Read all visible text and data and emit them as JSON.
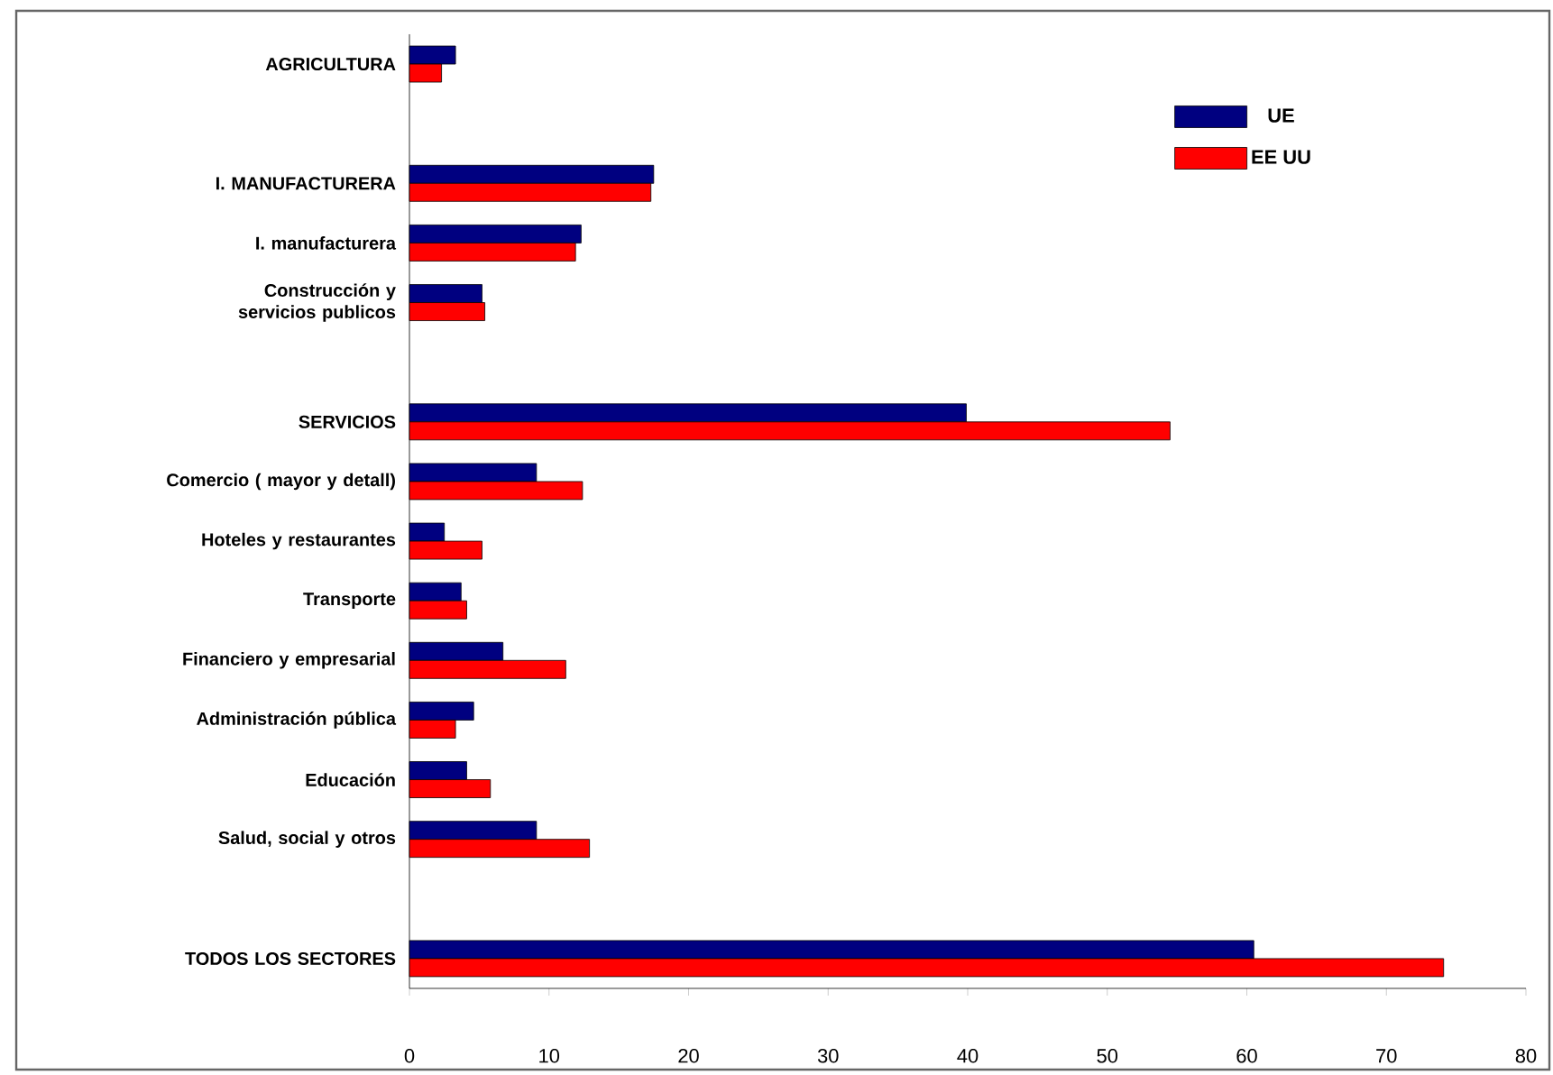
{
  "chart_data": {
    "type": "bar",
    "orientation": "horizontal",
    "categories": [
      "AGRICULTURA",
      null,
      "I. MANUFACTURERA",
      "I. manufacturera",
      "Construcción y servicios publicos",
      null,
      "SERVICIOS",
      "Comercio ( mayor y detall)",
      "Hoteles y restaurantes",
      "Transporte",
      "Financiero y empresarial",
      "Administración pública",
      "Educación",
      "Salud, social y otros",
      null,
      "TODOS LOS SECTORES"
    ],
    "series": [
      {
        "name": "UE",
        "color": "#000080",
        "values": [
          3.3,
          null,
          17.5,
          12.3,
          5.2,
          null,
          39.9,
          9.1,
          2.5,
          3.7,
          6.7,
          4.6,
          4.1,
          9.1,
          null,
          60.5
        ]
      },
      {
        "name": "EE UU",
        "color": "#ff0000",
        "values": [
          2.3,
          null,
          17.3,
          11.9,
          5.4,
          null,
          54.5,
          12.4,
          5.2,
          4.1,
          11.2,
          3.3,
          5.8,
          12.9,
          null,
          74.1
        ]
      }
    ],
    "xlim": [
      0,
      80
    ],
    "xticks": [
      0,
      10,
      20,
      30,
      40,
      50,
      60,
      70,
      80
    ],
    "grid": false,
    "legend": "top right"
  }
}
